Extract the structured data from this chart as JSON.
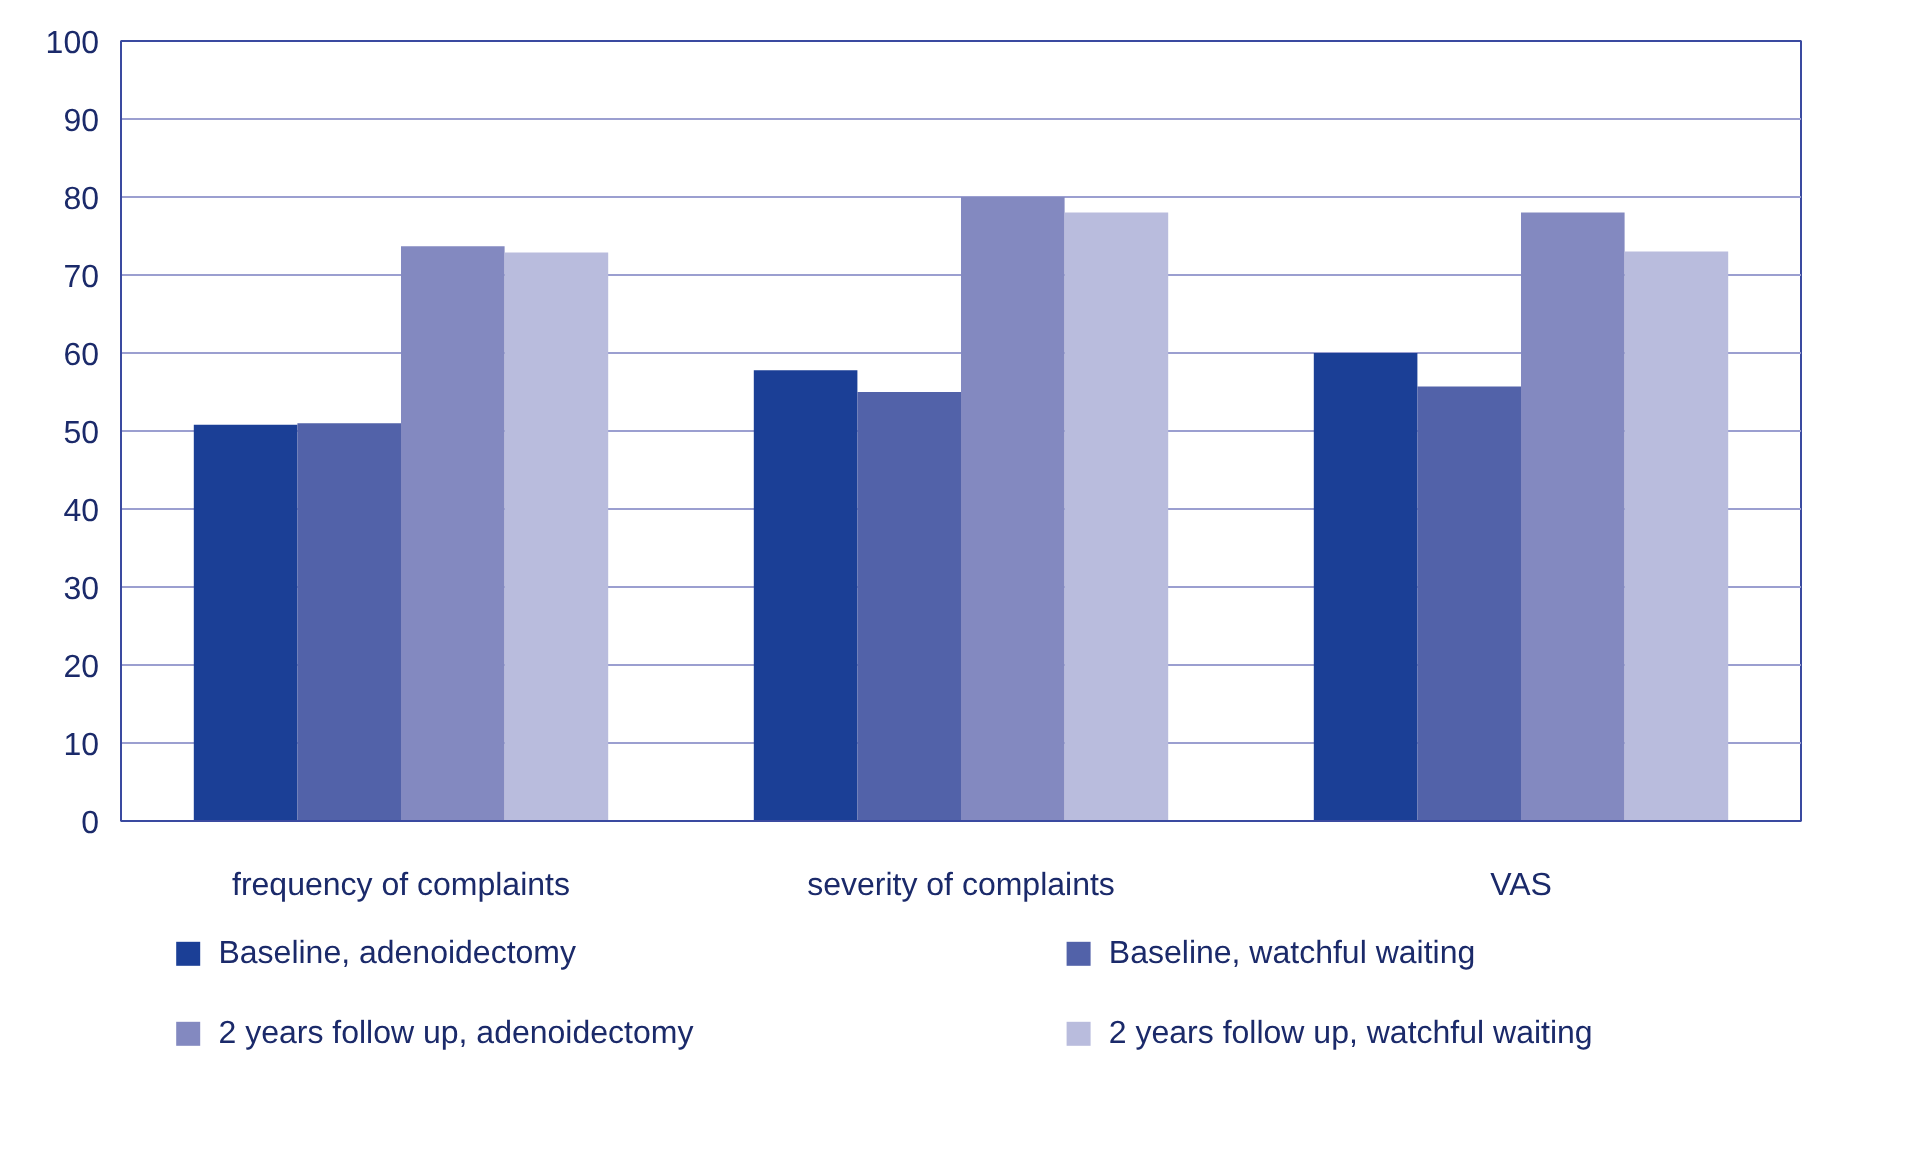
{
  "chart_data": {
    "type": "bar",
    "categories": [
      "frequency of complaints",
      "severity of complaints",
      "VAS"
    ],
    "series": [
      {
        "name": "Baseline, adenoidectomy",
        "color": "#1b3f96",
        "values": [
          50.8,
          57.8,
          60
        ]
      },
      {
        "name": "Baseline, watchful waiting",
        "color": "#5262a9",
        "values": [
          51,
          55,
          55.7
        ]
      },
      {
        "name": "2 years follow up, adenoidectomy",
        "color": "#8389c0",
        "values": [
          73.7,
          80,
          78
        ]
      },
      {
        "name": "2 years follow up, watchful waiting",
        "color": "#b9bcdd",
        "values": [
          72.9,
          78,
          73
        ]
      }
    ],
    "ylim": [
      0,
      100
    ],
    "yticks": [
      0,
      10,
      20,
      30,
      40,
      50,
      60,
      70,
      80,
      90,
      100
    ],
    "grid": "y",
    "legend": "bottom"
  }
}
